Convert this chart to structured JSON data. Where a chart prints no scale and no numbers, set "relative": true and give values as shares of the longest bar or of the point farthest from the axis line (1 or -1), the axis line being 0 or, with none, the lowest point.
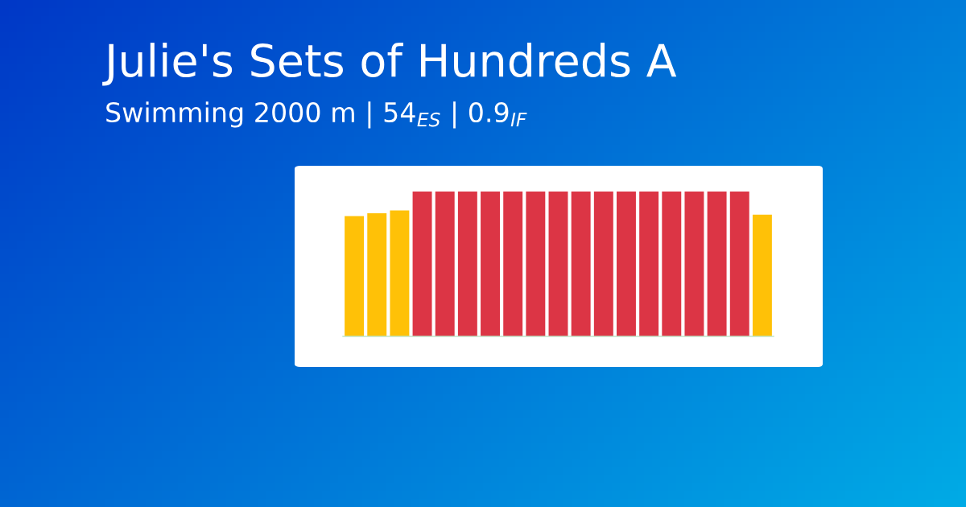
{
  "chart_data": {
    "type": "bar",
    "title": "Julie's Sets of Hundreds A",
    "subtitle": "Swimming 2000 m | 54$_{ES}$ | 0.9$_{IF}$",
    "relative": true,
    "categories": [
      null,
      null,
      null,
      null,
      null,
      null,
      null,
      null,
      null,
      null,
      null,
      null,
      null,
      null,
      null,
      null,
      null,
      null,
      null
    ],
    "values": [
      0.83,
      0.85,
      0.87,
      1,
      1,
      1,
      1,
      1,
      1,
      1,
      1,
      1,
      1,
      1,
      1,
      1,
      1,
      1,
      0.84
    ],
    "colors": [
      "#ffc107",
      "#ffc107",
      "#ffc107",
      "#dc3545",
      "#dc3545",
      "#dc3545",
      "#dc3545",
      "#dc3545",
      "#dc3545",
      "#dc3545",
      "#dc3545",
      "#dc3545",
      "#dc3545",
      "#dc3545",
      "#dc3545",
      "#dc3545",
      "#dc3545",
      "#dc3545",
      "#ffc107"
    ],
    "grid": false,
    "legend": false
  }
}
